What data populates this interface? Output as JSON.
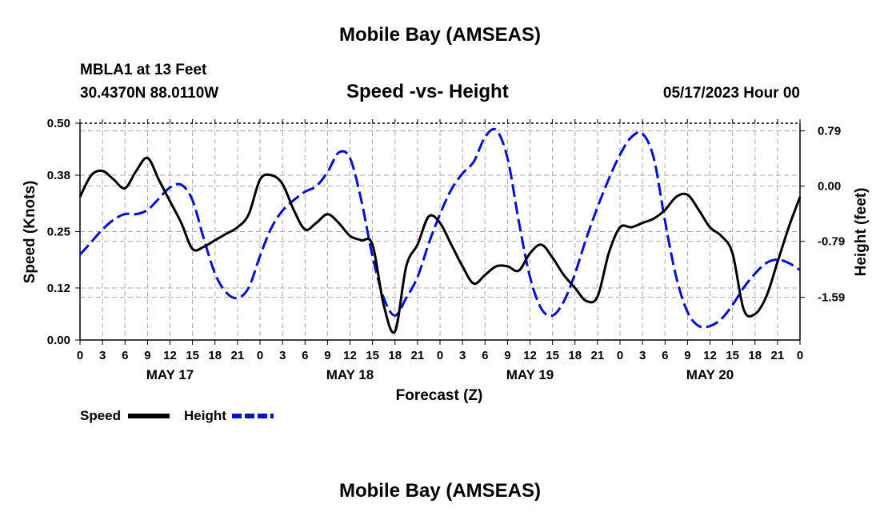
{
  "header": {
    "title": "Mobile Bay (AMSEAS)",
    "station": "MBLA1 at 13 Feet",
    "coords": "30.4370N  88.0110W",
    "subtitle": "Speed -vs- Height",
    "datetime": "05/17/2023 Hour 00",
    "footer_title": "Mobile Bay (AMSEAS)"
  },
  "legend": {
    "speed_label": "Speed",
    "height_label": "Height"
  },
  "colors": {
    "speed": "#000000",
    "height": "#0010cc",
    "grid": "#aaaaaa"
  },
  "chart_data": {
    "type": "line",
    "title": "Speed -vs- Height",
    "xlabel": "Forecast (Z)",
    "ylabel": "Speed (Knots)",
    "y2label": "Height (feet)",
    "x_unit": "hours since 05/17/2023 00Z",
    "xlim": [
      0,
      96
    ],
    "ylim": [
      0,
      0.5
    ],
    "y2lim": [
      -2.2,
      0.9
    ],
    "x_tick_labels": [
      "0",
      "3",
      "6",
      "9",
      "12",
      "15",
      "18",
      "21",
      "0",
      "3",
      "6",
      "9",
      "12",
      "15",
      "18",
      "21",
      "0",
      "3",
      "6",
      "9",
      "12",
      "15",
      "18",
      "21",
      "0",
      "3",
      "6",
      "9",
      "12",
      "15",
      "18",
      "21",
      "0"
    ],
    "y_ticks": [
      0.0,
      0.12,
      0.25,
      0.38,
      0.5
    ],
    "y_tick_labels": [
      "0.00",
      "0.12",
      "0.25",
      "0.38",
      "0.50"
    ],
    "y2_ticks": [
      0.79,
      0.0,
      -0.79,
      -1.59
    ],
    "y2_tick_labels": [
      "0.79",
      "0.00",
      "-0.79",
      "-1.59"
    ],
    "day_labels": [
      {
        "label": "MAY 17",
        "hour": 12
      },
      {
        "label": "MAY 18",
        "hour": 36
      },
      {
        "label": "MAY 19",
        "hour": 60
      },
      {
        "label": "MAY 20",
        "hour": 84
      }
    ],
    "series": [
      {
        "name": "Speed",
        "axis": "left",
        "style": "solid",
        "x": [
          0,
          1.5,
          3,
          4.5,
          6,
          7.5,
          9,
          10.5,
          12,
          13.5,
          15,
          16.5,
          18,
          19.5,
          21,
          22.5,
          24,
          25.5,
          27,
          28.5,
          30,
          31.5,
          33,
          34.5,
          36,
          37.5,
          39,
          40.5,
          42,
          43.5,
          45,
          46.5,
          48,
          49.5,
          51,
          52.5,
          54,
          55.5,
          57,
          58.5,
          60,
          61.5,
          63,
          64.5,
          66,
          67.5,
          69,
          70.5,
          72,
          73.5,
          75,
          76.5,
          78,
          79.5,
          81,
          82.5,
          84,
          85.5,
          87,
          88.5,
          90,
          91.5,
          93,
          94.5,
          96
        ],
        "values": [
          0.33,
          0.38,
          0.39,
          0.37,
          0.35,
          0.39,
          0.42,
          0.37,
          0.32,
          0.27,
          0.21,
          0.215,
          0.23,
          0.245,
          0.26,
          0.29,
          0.37,
          0.38,
          0.36,
          0.3,
          0.255,
          0.27,
          0.29,
          0.27,
          0.24,
          0.23,
          0.22,
          0.08,
          0.02,
          0.17,
          0.22,
          0.285,
          0.27,
          0.22,
          0.17,
          0.13,
          0.15,
          0.17,
          0.17,
          0.16,
          0.2,
          0.22,
          0.19,
          0.15,
          0.12,
          0.09,
          0.1,
          0.2,
          0.26,
          0.26,
          0.27,
          0.28,
          0.3,
          0.33,
          0.335,
          0.3,
          0.26,
          0.24,
          0.2,
          0.07,
          0.06,
          0.1,
          0.18,
          0.26,
          0.33
        ]
      },
      {
        "name": "Height",
        "axis": "right",
        "style": "dashed",
        "x": [
          0,
          1.5,
          3,
          4.5,
          6,
          7.5,
          9,
          10.5,
          12,
          13.5,
          15,
          16.5,
          18,
          19.5,
          21,
          22.5,
          24,
          25.5,
          27,
          28.5,
          30,
          31.5,
          33,
          34.5,
          36,
          37.5,
          39,
          40.5,
          42,
          43.5,
          45,
          46.5,
          48,
          49.5,
          51,
          52.5,
          54,
          55.5,
          57,
          58.5,
          60,
          61.5,
          63,
          64.5,
          66,
          67.5,
          69,
          70.5,
          72,
          73.5,
          75,
          76.5,
          78,
          79.5,
          81,
          82.5,
          84,
          85.5,
          87,
          88.5,
          90,
          91.5,
          93,
          94.5,
          96
        ],
        "values": [
          -0.98,
          -0.8,
          -0.62,
          -0.48,
          -0.4,
          -0.4,
          -0.34,
          -0.18,
          -0.02,
          0.02,
          -0.2,
          -0.75,
          -1.25,
          -1.52,
          -1.6,
          -1.45,
          -1.0,
          -0.6,
          -0.35,
          -0.2,
          -0.08,
          0.0,
          0.2,
          0.48,
          0.4,
          -0.2,
          -1.0,
          -1.6,
          -1.85,
          -1.6,
          -1.3,
          -0.82,
          -0.4,
          -0.05,
          0.18,
          0.35,
          0.7,
          0.8,
          0.4,
          -0.5,
          -1.3,
          -1.75,
          -1.85,
          -1.65,
          -1.25,
          -0.75,
          -0.3,
          0.1,
          0.45,
          0.7,
          0.75,
          0.4,
          -0.5,
          -1.3,
          -1.8,
          -2.0,
          -2.0,
          -1.9,
          -1.7,
          -1.45,
          -1.25,
          -1.1,
          -1.05,
          -1.1,
          -1.2
        ]
      }
    ]
  }
}
